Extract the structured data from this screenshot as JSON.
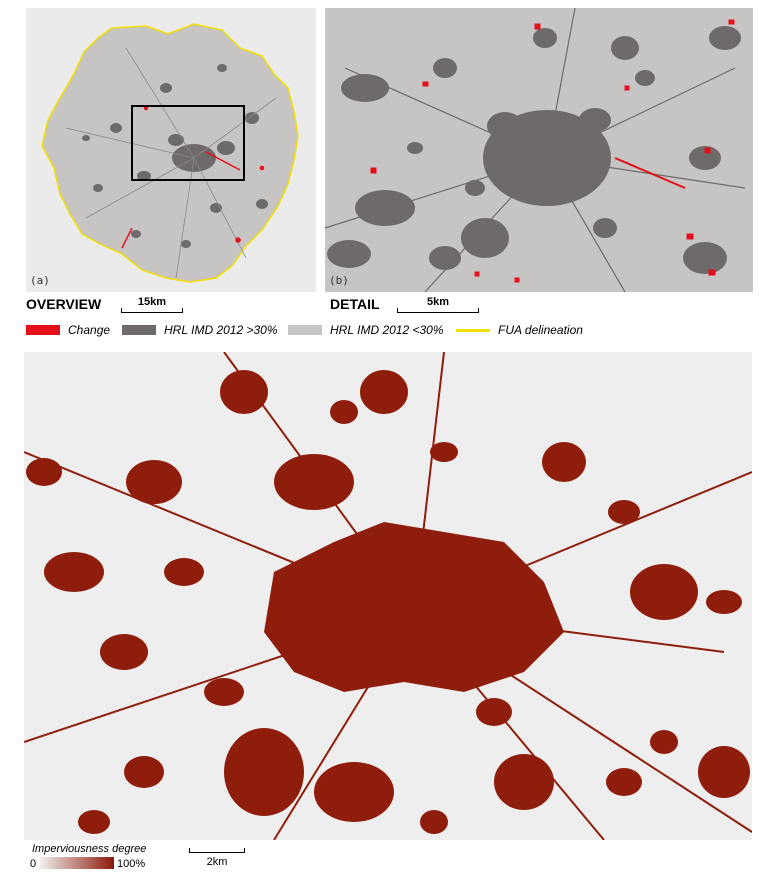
{
  "panels": {
    "overview": {
      "tag": "(a)",
      "label": "OVERVIEW",
      "scale": "15km"
    },
    "detail": {
      "tag": "(b)",
      "label": "DETAIL",
      "scale": "5km"
    },
    "main": {
      "scale": "2km"
    }
  },
  "legend": {
    "items": [
      {
        "label": "Change",
        "color": "#e3101c",
        "kind": "box"
      },
      {
        "label": "HRL IMD 2012 >30%",
        "color": "#6e6a6a",
        "kind": "box"
      },
      {
        "label": "HRL IMD 2012 <30%",
        "color": "#c7c4c4",
        "kind": "box"
      },
      {
        "label": "FUA delineation",
        "color": "#f2e000",
        "kind": "line"
      }
    ]
  },
  "gradient": {
    "title": "Imperviousness degree",
    "min": "0",
    "max": "100%",
    "from": "#f2efee",
    "to": "#8b1a0a"
  },
  "colors": {
    "background": "#ecebeb",
    "urban_dark": "#6e6a6a",
    "urban_light": "#c7c4c4",
    "change": "#e3101c",
    "fua": "#f2e000",
    "impervious": "#8f1d0c",
    "impervious_bg": "#efeeee"
  }
}
